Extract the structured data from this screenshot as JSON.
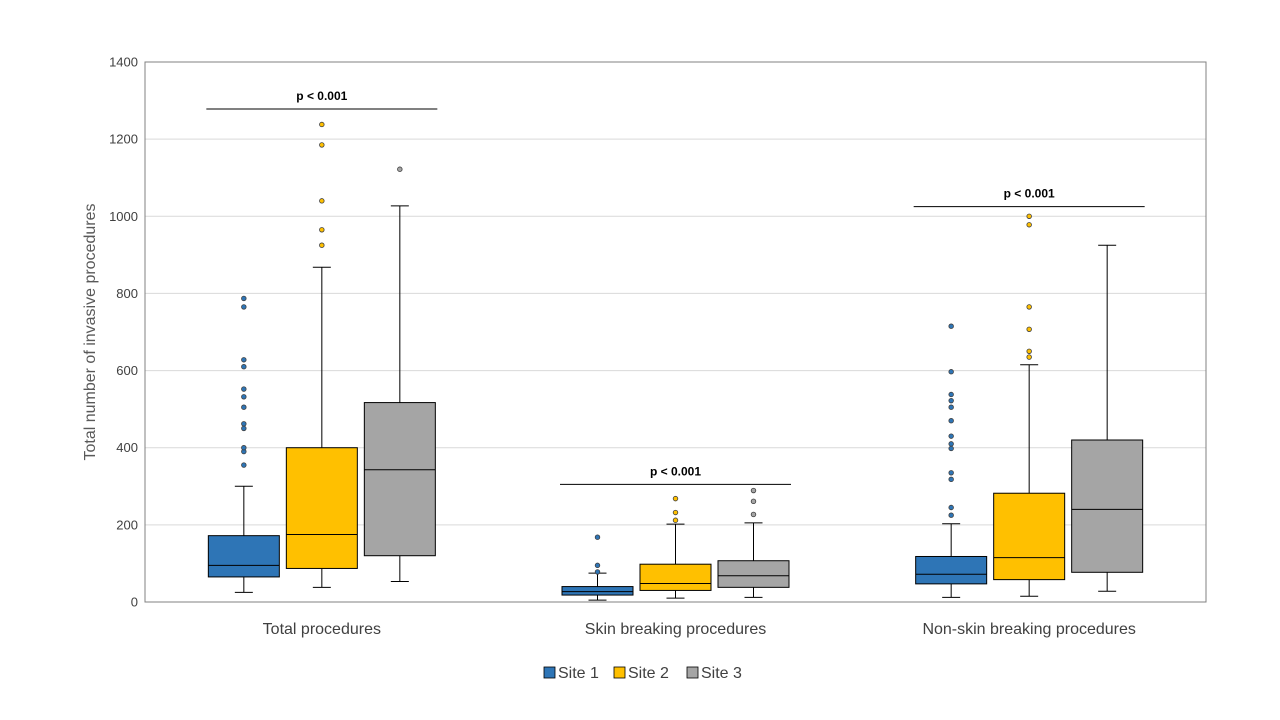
{
  "chart_data": {
    "type": "boxplot",
    "ylabel": "Total number of invasive procedures",
    "ylim": [
      0,
      1400
    ],
    "yticks": [
      0,
      200,
      400,
      600,
      800,
      1000,
      1200,
      1400
    ],
    "grid": true,
    "legend_position": "bottom",
    "categories": [
      "Total procedures",
      "Skin breaking procedures",
      "Non-skin breaking procedures"
    ],
    "series": [
      {
        "name": "Site 1",
        "color": "#2e75b6",
        "boxes": [
          {
            "whisker_low": 25,
            "q1": 65,
            "median": 95,
            "q3": 172,
            "whisker_high": 300,
            "outliers": [
              355,
              390,
              400,
              450,
              462,
              505,
              532,
              552,
              610,
              628,
              765,
              787
            ]
          },
          {
            "whisker_low": 5,
            "q1": 18,
            "median": 27,
            "q3": 40,
            "whisker_high": 75,
            "outliers": [
              78,
              95,
              168
            ]
          },
          {
            "whisker_low": 12,
            "q1": 47,
            "median": 72,
            "q3": 118,
            "whisker_high": 203,
            "outliers": [
              225,
              245,
              318,
              335,
              398,
              410,
              430,
              470,
              505,
              522,
              538,
              597,
              715
            ]
          }
        ]
      },
      {
        "name": "Site 2",
        "color": "#ffc000",
        "boxes": [
          {
            "whisker_low": 38,
            "q1": 87,
            "median": 175,
            "q3": 400,
            "whisker_high": 868,
            "outliers": [
              925,
              965,
              1040,
              1185,
              1238
            ]
          },
          {
            "whisker_low": 10,
            "q1": 30,
            "median": 48,
            "q3": 98,
            "whisker_high": 202,
            "outliers": [
              212,
              232,
              268
            ]
          },
          {
            "whisker_low": 15,
            "q1": 58,
            "median": 115,
            "q3": 282,
            "whisker_high": 615,
            "outliers": [
              635,
              650,
              707,
              765,
              978,
              1000
            ]
          }
        ]
      },
      {
        "name": "Site 3",
        "color": "#a5a5a5",
        "boxes": [
          {
            "whisker_low": 53,
            "q1": 120,
            "median": 343,
            "q3": 517,
            "whisker_high": 1027,
            "outliers": [
              1122
            ]
          },
          {
            "whisker_low": 12,
            "q1": 38,
            "median": 68,
            "q3": 107,
            "whisker_high": 205,
            "outliers": [
              227,
              261,
              289
            ]
          },
          {
            "whisker_low": 28,
            "q1": 77,
            "median": 240,
            "q3": 420,
            "whisker_high": 925,
            "outliers": []
          }
        ]
      }
    ],
    "annotations": [
      {
        "category": 0,
        "text": "p < 0.001",
        "y": 1278
      },
      {
        "category": 1,
        "text": "p < 0.001",
        "y": 305
      },
      {
        "category": 2,
        "text": "p < 0.001",
        "y": 1025
      }
    ]
  }
}
